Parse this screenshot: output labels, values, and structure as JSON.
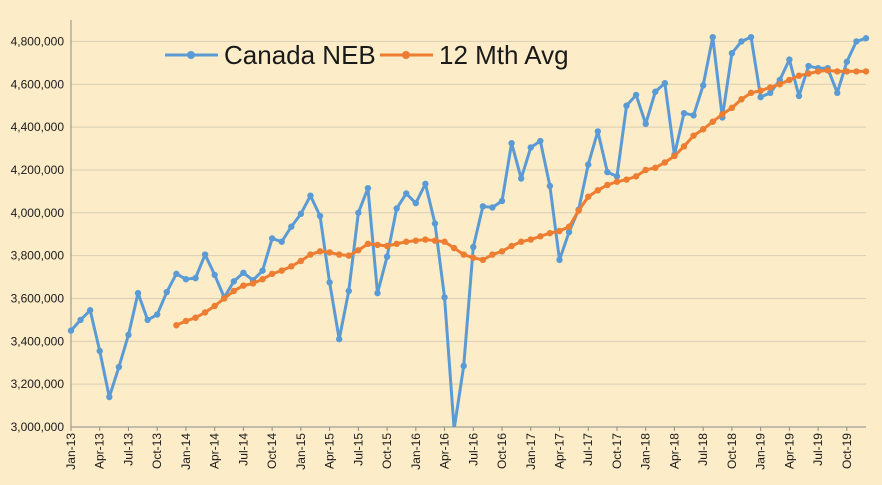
{
  "chart_data": {
    "type": "line",
    "title": "",
    "xlabel": "",
    "ylabel": "",
    "ylim": [
      3000000,
      4900000
    ],
    "yticks": [
      "3,000,000",
      "3,200,000",
      "3,400,000",
      "3,600,000",
      "3,800,000",
      "4,000,000",
      "4,200,000",
      "4,400,000",
      "4,600,000",
      "4,800,000"
    ],
    "grid": "horizontal",
    "legend": "top-left",
    "x": [
      "Jan-13",
      "Feb-13",
      "Mar-13",
      "Apr-13",
      "May-13",
      "Jun-13",
      "Jul-13",
      "Aug-13",
      "Sep-13",
      "Oct-13",
      "Nov-13",
      "Dec-13",
      "Jan-14",
      "Feb-14",
      "Mar-14",
      "Apr-14",
      "May-14",
      "Jun-14",
      "Jul-14",
      "Aug-14",
      "Sep-14",
      "Oct-14",
      "Nov-14",
      "Dec-14",
      "Jan-15",
      "Feb-15",
      "Mar-15",
      "Apr-15",
      "May-15",
      "Jun-15",
      "Jul-15",
      "Aug-15",
      "Sep-15",
      "Oct-15",
      "Nov-15",
      "Dec-15",
      "Jan-16",
      "Feb-16",
      "Mar-16",
      "Apr-16",
      "May-16",
      "Jun-16",
      "Jul-16",
      "Aug-16",
      "Sep-16",
      "Oct-16",
      "Nov-16",
      "Dec-16",
      "Jan-17",
      "Feb-17",
      "Mar-17",
      "Apr-17",
      "May-17",
      "Jun-17",
      "Jul-17",
      "Aug-17",
      "Sep-17",
      "Oct-17",
      "Nov-17",
      "Dec-17",
      "Jan-18",
      "Feb-18",
      "Mar-18",
      "Apr-18",
      "May-18",
      "Jun-18",
      "Jul-18",
      "Aug-18",
      "Sep-18",
      "Oct-18",
      "Nov-18",
      "Dec-18",
      "Jan-19",
      "Feb-19",
      "Mar-19",
      "Apr-19",
      "May-19",
      "Jun-19",
      "Jul-19",
      "Aug-19",
      "Sep-19",
      "Oct-19",
      "Nov-19",
      "Dec-19"
    ],
    "xtick_labels": [
      "Jan-13",
      "Apr-13",
      "Jul-13",
      "Oct-13",
      "Jan-14",
      "Apr-14",
      "Jul-14",
      "Oct-14",
      "Jan-15",
      "Apr-15",
      "Jul-15",
      "Oct-15",
      "Jan-16",
      "Apr-16",
      "Jul-16",
      "Oct-16",
      "Jan-17",
      "Apr-17",
      "Jul-17",
      "Oct-17",
      "Jan-18",
      "Apr-18",
      "Jul-18",
      "Oct-18",
      "Jan-19",
      "Apr-19",
      "Jul-19",
      "Oct-19"
    ],
    "series": [
      {
        "name": "Canada NEB",
        "color": "#5b9bd5",
        "values": [
          3450000,
          3500000,
          3545000,
          3355000,
          3140000,
          3280000,
          3430000,
          3625000,
          3500000,
          3525000,
          3630000,
          3715000,
          3690000,
          3695000,
          3805000,
          3710000,
          3605000,
          3680000,
          3720000,
          3685000,
          3730000,
          3880000,
          3865000,
          3935000,
          3995000,
          4080000,
          3985000,
          3675000,
          3410000,
          3635000,
          4000000,
          4115000,
          3625000,
          3795000,
          4020000,
          4090000,
          4045000,
          4135000,
          3950000,
          3605000,
          2990000,
          3285000,
          3840000,
          4030000,
          4025000,
          4055000,
          4325000,
          4160000,
          4305000,
          4335000,
          4125000,
          3780000,
          3910000,
          4015000,
          4225000,
          4380000,
          4190000,
          4170000,
          4500000,
          4550000,
          4415000,
          4565000,
          4605000,
          4270000,
          4465000,
          4455000,
          4595000,
          4820000,
          4445000,
          4745000,
          4800000,
          4820000,
          4540000,
          4560000,
          4620000,
          4715000,
          4545000,
          4685000,
          4675000,
          4675000,
          4560000,
          4705000,
          4800000,
          4815000
        ]
      },
      {
        "name": "12 Mth Avg",
        "color": "#ed7d31",
        "values": [
          null,
          null,
          null,
          null,
          null,
          null,
          null,
          null,
          null,
          null,
          null,
          3475000,
          3495000,
          3510000,
          3535000,
          3565000,
          3600000,
          3635000,
          3660000,
          3670000,
          3690000,
          3715000,
          3730000,
          3750000,
          3775000,
          3805000,
          3820000,
          3815000,
          3805000,
          3800000,
          3825000,
          3855000,
          3850000,
          3845000,
          3855000,
          3865000,
          3870000,
          3875000,
          3870000,
          3865000,
          3835000,
          3805000,
          3790000,
          3780000,
          3805000,
          3820000,
          3845000,
          3865000,
          3875000,
          3890000,
          3905000,
          3915000,
          3935000,
          4010000,
          4075000,
          4105000,
          4130000,
          4145000,
          4155000,
          4170000,
          4200000,
          4210000,
          4235000,
          4265000,
          4310000,
          4360000,
          4390000,
          4425000,
          4460000,
          4490000,
          4530000,
          4560000,
          4570000,
          4585000,
          4600000,
          4620000,
          4640000,
          4650000,
          4660000,
          4665000,
          4660000,
          4660000,
          4660000,
          4660000
        ]
      }
    ]
  }
}
